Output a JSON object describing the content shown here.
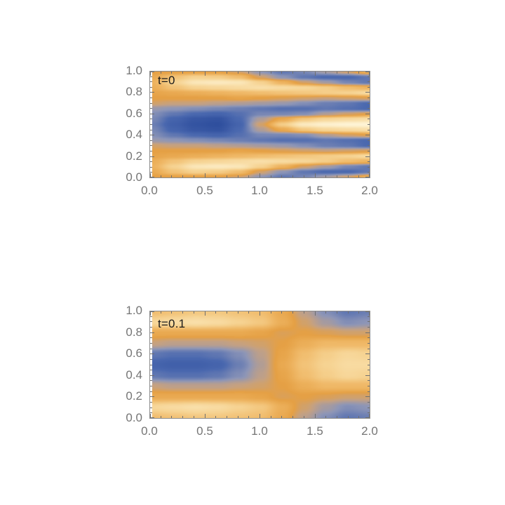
{
  "style": {
    "background": "#ffffff",
    "frame_color": "#8c8c8c",
    "tick_color": "#6f6f6f",
    "tick_label_color": "#757575",
    "plot_label_color": "#1a1a1a",
    "colormap": [
      {
        "t": 0.0,
        "color": "#2F4F9E"
      },
      {
        "t": 0.15,
        "color": "#4A68AF"
      },
      {
        "t": 0.3,
        "color": "#8E96B7"
      },
      {
        "t": 0.42,
        "color": "#C5A182"
      },
      {
        "t": 0.5,
        "color": "#E5A044"
      },
      {
        "t": 0.62,
        "color": "#EFB765"
      },
      {
        "t": 0.75,
        "color": "#F6D392"
      },
      {
        "t": 0.88,
        "color": "#FBE7BA"
      },
      {
        "t": 1.0,
        "color": "#FFF7DC"
      }
    ]
  },
  "chart_data": [
    {
      "type": "heatmap",
      "title": "t=0",
      "xlabel": "",
      "ylabel": "",
      "x_range": [
        0,
        2
      ],
      "y_range": [
        0,
        1
      ],
      "z_range": [
        -1,
        1
      ],
      "x_ticks": {
        "values": [
          0,
          0.5,
          1,
          1.5,
          2
        ],
        "labels": [
          "0.0",
          "0.5",
          "1.0",
          "1.5",
          "2.0"
        ],
        "minor_step": 0.1
      },
      "y_ticks": {
        "values": [
          0,
          0.2,
          0.4,
          0.6,
          0.8,
          1
        ],
        "labels": [
          "0.0",
          "0.2",
          "0.4",
          "0.6",
          "0.8",
          "1.0"
        ],
        "minor_step": 0.05
      },
      "grid": {
        "note": "estimated field values; rows from y=0 (bottom) to y=1 (top) step 0.05; cols x=0..2 step 0.2; -1=deep blue, 0=orange, +1=cream",
        "values": [
          [
            0,
            0,
            0,
            0,
            -0.1,
            -0.4,
            -0.6,
            -0.5,
            -0.3,
            -0.1,
            0.2
          ],
          [
            0.1,
            0.35,
            0.5,
            0.45,
            0.3,
            -0.1,
            -0.4,
            -0.6,
            -0.7,
            -0.7,
            -0.6
          ],
          [
            0.2,
            0.5,
            0.75,
            0.8,
            0.75,
            0.5,
            0.2,
            -0.1,
            -0.3,
            -0.5,
            -0.6
          ],
          [
            0.15,
            0.35,
            0.5,
            0.55,
            0.6,
            0.65,
            0.6,
            0.55,
            0.45,
            0.3,
            0.2
          ],
          [
            0.05,
            0.1,
            0.15,
            0.2,
            0.25,
            0.3,
            0.35,
            0.4,
            0.45,
            0.5,
            0.6
          ],
          [
            0,
            0,
            0,
            0,
            0.05,
            0,
            -0.05,
            -0.1,
            -0.15,
            -0.1,
            -0.05
          ],
          [
            -0.1,
            -0.15,
            -0.15,
            -0.2,
            -0.25,
            -0.3,
            -0.35,
            -0.45,
            -0.55,
            -0.6,
            -0.7
          ],
          [
            -0.35,
            -0.4,
            -0.45,
            -0.5,
            -0.55,
            -0.6,
            -0.65,
            -0.65,
            -0.6,
            -0.65,
            -0.7
          ],
          [
            -0.45,
            -0.6,
            -0.7,
            -0.75,
            -0.65,
            -0.5,
            -0.5,
            -0.45,
            -0.25,
            -0.1,
            0
          ],
          [
            -0.5,
            -0.75,
            -0.9,
            -0.95,
            -0.7,
            -0.25,
            0.1,
            0.4,
            0.55,
            0.6,
            0.65
          ],
          [
            -0.55,
            -0.8,
            -0.95,
            -1,
            -0.75,
            -0.1,
            0.45,
            0.8,
            0.9,
            0.95,
            0.95
          ],
          [
            -0.5,
            -0.75,
            -0.9,
            -0.95,
            -0.7,
            -0.25,
            0.1,
            0.4,
            0.55,
            0.6,
            0.65
          ],
          [
            -0.45,
            -0.6,
            -0.7,
            -0.75,
            -0.65,
            -0.5,
            -0.5,
            -0.45,
            -0.25,
            -0.1,
            0
          ],
          [
            -0.35,
            -0.4,
            -0.45,
            -0.5,
            -0.55,
            -0.6,
            -0.65,
            -0.65,
            -0.6,
            -0.65,
            -0.7
          ],
          [
            -0.1,
            -0.15,
            -0.15,
            -0.2,
            -0.25,
            -0.3,
            -0.35,
            -0.45,
            -0.55,
            -0.6,
            -0.7
          ],
          [
            0,
            0,
            0,
            0,
            0.05,
            0,
            -0.05,
            -0.1,
            -0.15,
            -0.1,
            -0.05
          ],
          [
            0.05,
            0.1,
            0.15,
            0.2,
            0.25,
            0.3,
            0.35,
            0.4,
            0.45,
            0.5,
            0.6
          ],
          [
            0.15,
            0.35,
            0.5,
            0.55,
            0.6,
            0.65,
            0.6,
            0.55,
            0.45,
            0.3,
            0.2
          ],
          [
            0.2,
            0.5,
            0.75,
            0.8,
            0.75,
            0.5,
            0.2,
            -0.1,
            -0.3,
            -0.5,
            -0.6
          ],
          [
            0.1,
            0.35,
            0.5,
            0.45,
            0.3,
            -0.1,
            -0.4,
            -0.6,
            -0.7,
            -0.7,
            -0.6
          ],
          [
            0,
            0,
            0,
            0,
            -0.1,
            -0.4,
            -0.6,
            -0.5,
            -0.3,
            -0.1,
            0.2
          ]
        ]
      }
    },
    {
      "type": "heatmap",
      "title": "t=0.1",
      "xlabel": "",
      "ylabel": "",
      "x_range": [
        0,
        2
      ],
      "y_range": [
        0,
        1
      ],
      "z_range": [
        -1,
        1
      ],
      "x_ticks": {
        "values": [
          0,
          0.5,
          1,
          1.5,
          2
        ],
        "labels": [
          "0.0",
          "0.5",
          "1.0",
          "1.5",
          "2.0"
        ],
        "minor_step": 0.1
      },
      "y_ticks": {
        "values": [
          0,
          0.2,
          0.4,
          0.6,
          0.8,
          1
        ],
        "labels": [
          "0.0",
          "0.2",
          "0.4",
          "0.6",
          "0.8",
          "1.0"
        ],
        "minor_step": 0.05
      },
      "grid": {
        "note": "estimated field values; rows from y=0 (bottom) to y=1 (top) step 0.1; cols x=0..2 step 0.2",
        "values": [
          [
            0.3,
            0.35,
            0.4,
            0.4,
            0.35,
            0.3,
            0.1,
            -0.2,
            -0.45,
            -0.6,
            -0.55
          ],
          [
            0.55,
            0.6,
            0.65,
            0.6,
            0.5,
            0.4,
            0.15,
            -0.1,
            -0.3,
            -0.45,
            -0.4
          ],
          [
            0.1,
            0.1,
            0.1,
            0.1,
            0.1,
            0.05,
            -0.05,
            0,
            -0.05,
            -0.1,
            -0.1
          ],
          [
            -0.15,
            -0.2,
            -0.2,
            -0.2,
            -0.15,
            -0.1,
            0,
            0.15,
            0.25,
            0.25,
            0.25
          ],
          [
            -0.6,
            -0.65,
            -0.65,
            -0.6,
            -0.45,
            -0.2,
            0.05,
            0.3,
            0.45,
            0.55,
            0.5
          ],
          [
            -0.75,
            -0.8,
            -0.8,
            -0.75,
            -0.55,
            -0.25,
            0.1,
            0.35,
            0.5,
            0.6,
            0.6
          ],
          [
            -0.6,
            -0.65,
            -0.65,
            -0.6,
            -0.45,
            -0.2,
            0.05,
            0.3,
            0.45,
            0.55,
            0.5
          ],
          [
            -0.15,
            -0.2,
            -0.2,
            -0.2,
            -0.15,
            -0.1,
            0,
            0.15,
            0.25,
            0.25,
            0.25
          ],
          [
            0.1,
            0.1,
            0.1,
            0.1,
            0.1,
            0.05,
            -0.05,
            0,
            -0.05,
            -0.1,
            -0.1
          ],
          [
            0.55,
            0.6,
            0.65,
            0.6,
            0.5,
            0.4,
            0.15,
            -0.1,
            -0.3,
            -0.45,
            -0.4
          ],
          [
            0.3,
            0.35,
            0.4,
            0.4,
            0.35,
            0.3,
            0.1,
            -0.2,
            -0.45,
            -0.6,
            -0.55
          ]
        ]
      }
    }
  ]
}
